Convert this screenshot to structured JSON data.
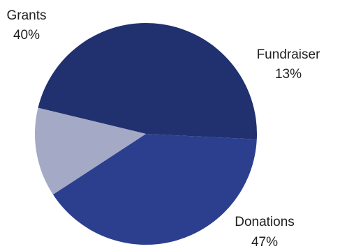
{
  "chart_data": {
    "type": "pie",
    "title": "",
    "slices": [
      {
        "label": "Grants",
        "value": 40,
        "display": "40%",
        "color": "#2c3f8f"
      },
      {
        "label": "Fundraiser",
        "value": 13,
        "display": "13%",
        "color": "#a4a9c5"
      },
      {
        "label": "Donations",
        "value": 47,
        "display": "47%",
        "color": "#21306f"
      }
    ],
    "legend": "none"
  }
}
